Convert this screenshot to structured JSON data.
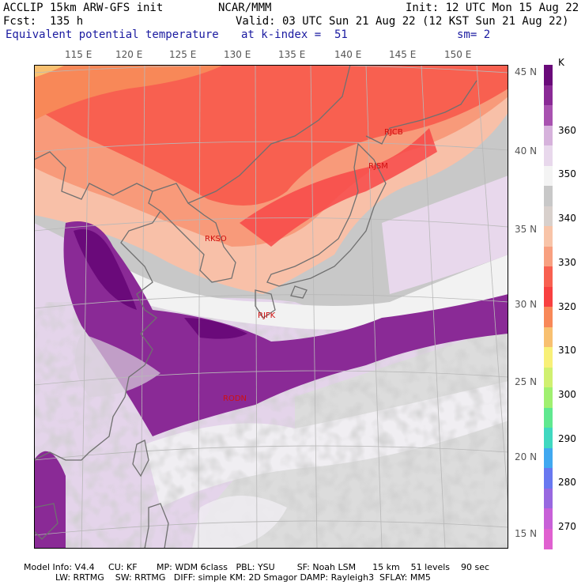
{
  "header": {
    "model": "ACCLIP 15km ARW-GFS init",
    "org": "NCAR/MMM",
    "init": "Init: 12 UTC Mon 15 Aug 22",
    "fcst": "Fcst:  135 h",
    "valid": "Valid: 03 UTC Sun 21 Aug 22 (12 KST Sun 21 Aug 22)",
    "field": "Equivalent potential temperature",
    "level": "at k-index =  51",
    "smooth": "sm= 2"
  },
  "lon_labels": [
    "115 E",
    "120 E",
    "125 E",
    "130 E",
    "135 E",
    "140 E",
    "145 E",
    "150 E"
  ],
  "lat_labels": [
    "45 N",
    "40 N",
    "35 N",
    "30 N",
    "25 N",
    "20 N",
    "15 N"
  ],
  "colorbar": {
    "unit": "K",
    "labels": [
      "360",
      "350",
      "340",
      "330",
      "320",
      "310",
      "300",
      "290",
      "280",
      "270"
    ],
    "colors": [
      "#6a0a7a",
      "#8a2a96",
      "#a852b0",
      "#d6b2dc",
      "#e8d8ec",
      "#f4f4f4",
      "#c8c8c8",
      "#d8d0cc",
      "#f8c4a8",
      "#f8a080",
      "#f86050",
      "#f84040",
      "#f88858",
      "#f8c070",
      "#f8f078",
      "#d0f070",
      "#a0f070",
      "#60e890",
      "#40d8c0",
      "#40a8f0",
      "#6878f0",
      "#9868e0",
      "#c860d8",
      "#e060d0"
    ],
    "levels": [
      380,
      375,
      370,
      365,
      360,
      355,
      350,
      345,
      340,
      335,
      330,
      325,
      320,
      315,
      310,
      305,
      300,
      295,
      290,
      285,
      280,
      275,
      270,
      265
    ]
  },
  "stations": [
    "RJCB",
    "RJSM",
    "RKSO",
    "RJFK",
    "RODN"
  ],
  "footer": {
    "line1": "Model Info: V4.4     CU: KF       MP: WDM 6class   PBL: YSU        SF: Noah LSM      15 km    51 levels    90 sec",
    "line2": "LW: RRTMG    SW: RRTMG   DIFF: simple KM: 2D Smagor DAMP: Rayleigh3  SFLAY: MM5"
  }
}
